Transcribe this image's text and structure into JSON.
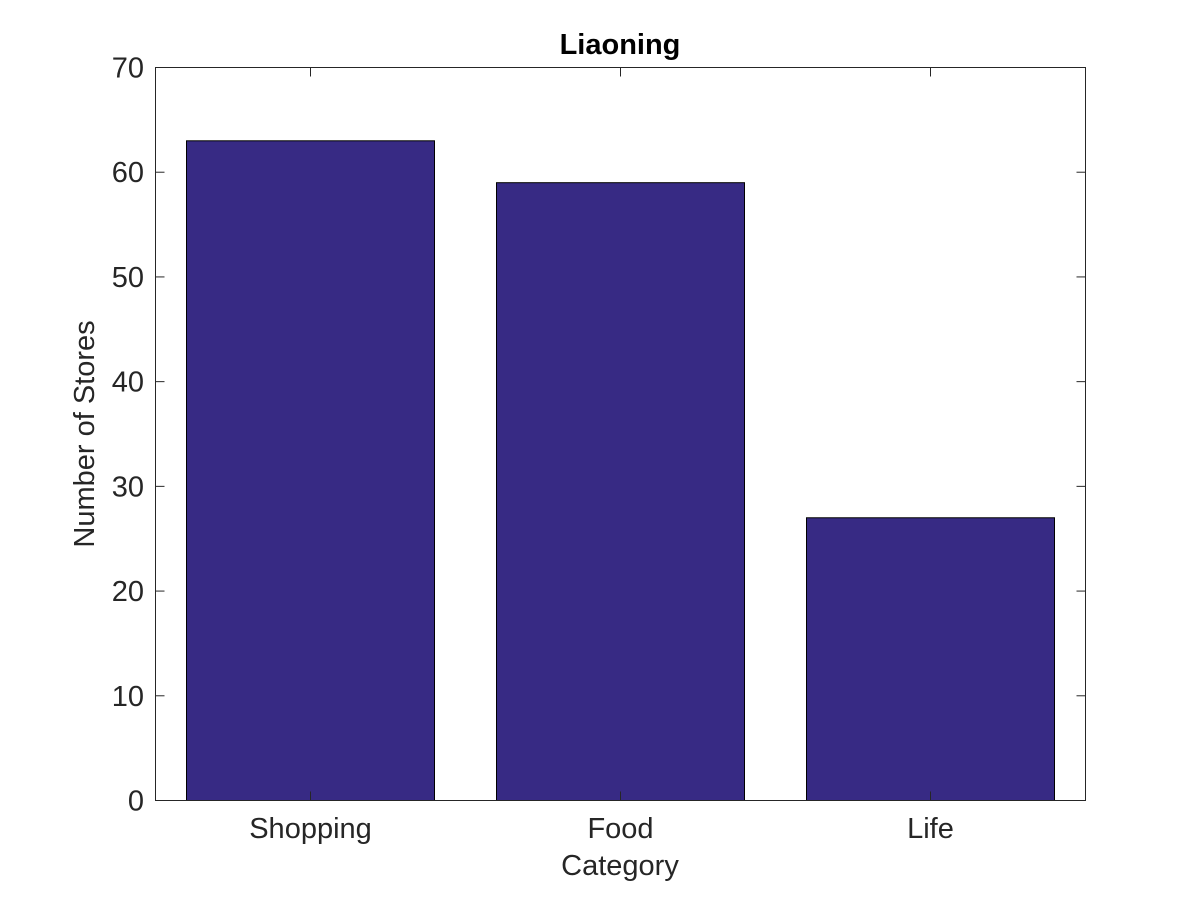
{
  "chart_data": {
    "type": "bar",
    "title": "Liaoning",
    "xlabel": "Category",
    "ylabel": "Number of Stores",
    "categories": [
      "Shopping",
      "Food",
      "Life"
    ],
    "values": [
      63,
      59,
      27
    ],
    "ylim": [
      0,
      70
    ],
    "yticks": [
      0,
      10,
      20,
      30,
      40,
      50,
      60,
      70
    ],
    "ytick_labels": [
      "0",
      "10",
      "20",
      "30",
      "40",
      "50",
      "60",
      "70"
    ],
    "grid": false,
    "legend": "none",
    "bar_color": "#372a84"
  }
}
